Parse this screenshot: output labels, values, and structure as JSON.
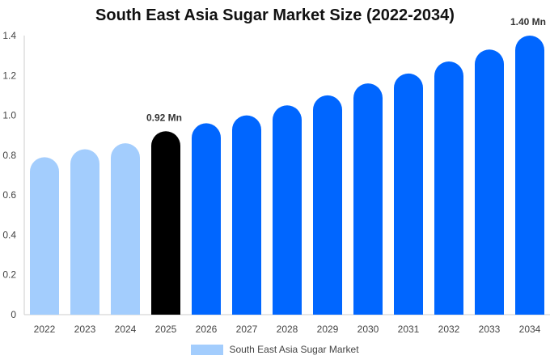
{
  "chart_data": {
    "type": "bar",
    "title": "South East Asia Sugar Market Size (2022-2034)",
    "xlabel": "",
    "ylabel": "",
    "categories": [
      "2022",
      "2023",
      "2024",
      "2025",
      "2026",
      "2027",
      "2028",
      "2029",
      "2030",
      "2031",
      "2032",
      "2033",
      "2034"
    ],
    "series": [
      {
        "name": "South East Asia Sugar Market",
        "values": [
          0.79,
          0.83,
          0.86,
          0.92,
          0.96,
          1.0,
          1.05,
          1.1,
          1.16,
          1.21,
          1.27,
          1.33,
          1.4
        ]
      }
    ],
    "bar_colors": [
      "#a3cdfd",
      "#a3cdfd",
      "#a3cdfd",
      "#000000",
      "#0066ff",
      "#0066ff",
      "#0066ff",
      "#0066ff",
      "#0066ff",
      "#0066ff",
      "#0066ff",
      "#0066ff",
      "#0066ff"
    ],
    "ylim": [
      0,
      1.4
    ],
    "yticks": [
      "0",
      "0.2",
      "0.4",
      "0.6",
      "0.8",
      "1.0",
      "1.2",
      "1.4"
    ],
    "data_labels": [
      {
        "category": "2025",
        "text": "0.92 Mn"
      },
      {
        "category": "2034",
        "text": "1.40 Mn"
      }
    ],
    "grid": false,
    "legend": {
      "position": "bottom",
      "label": "South East Asia Sugar Market",
      "color": "#a3cdfd"
    }
  }
}
